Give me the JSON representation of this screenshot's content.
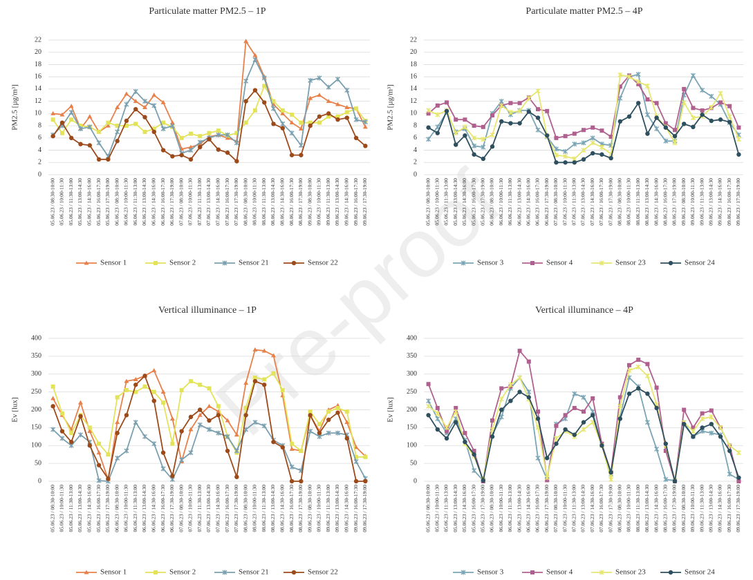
{
  "watermark": "Pre-proof",
  "chart_data": [
    {
      "type": "line",
      "title": "Particulate matter PM2.5 – 1P",
      "y_label": "PM2.5 [µg/m³]",
      "categories": [
        "05.06.23 / 08:30-10:00",
        "05.06.23 / 10:00-11:30",
        "05.06.23 / 11:30-13:00",
        "05.06.23 / 13:00-14:30",
        "05.06.23 / 14:30-16:00",
        "05.06.23 / 16:00-17:30",
        "05.06.23 / 17:30-19:00",
        "06.06.23 / 08:30-10:00",
        "06.06.23 / 10:00-11:30",
        "06.06.23 / 11:30-13:00",
        "06.06.23 / 13:00-14:30",
        "06.06.23 / 14:30-16:00",
        "06.06.23 / 16:00-17:30",
        "06.06.23 / 17:30-19:00",
        "07.06.23 / 08:30-10:00",
        "07.06.23 / 10:00-11:30",
        "07.06.23 / 11:30-13:00",
        "07.06.23 / 13:00-14:30",
        "07.06.23 / 14:30-16:00",
        "07.06.23 / 16:00-17:30",
        "07.06.23 / 17:30-19:00",
        "08.06.23 / 08:30-10:00",
        "08.06.23 / 10:00-11:30",
        "08.06.23 / 11:30-13:00",
        "08.06.23 / 13:00-14:30",
        "08.06.23 / 14:30-16:00",
        "08.06.23 / 16:00-17:30",
        "08.06.23 / 17:30-19:00",
        "09.06.23 / 08:30-10:00",
        "09.06.23 / 10:00-11:30",
        "09.06.23 / 11:30-13:00",
        "09.06.23 / 13:00-14:30",
        "09.06.23 / 14:30-16:00",
        "09.06.23 / 16:00-17:30",
        "09.06.23 / 17:30-19:00"
      ],
      "ylim": [
        0,
        22
      ],
      "yticks": [
        0,
        2,
        4,
        6,
        8,
        10,
        12,
        14,
        16,
        18,
        20,
        22
      ],
      "grid": true,
      "series": [
        {
          "name": "Sensor 1",
          "color": "#e8804a",
          "marker": "triangle",
          "values": [
            10,
            9.8,
            11.2,
            7.5,
            9.5,
            7,
            8,
            11,
            13.2,
            12,
            11,
            13,
            11.8,
            8.5,
            4.2,
            4.5,
            5,
            6.2,
            6.5,
            6,
            5.5,
            21.8,
            19.5,
            16,
            11.5,
            10,
            8.5,
            7.5,
            12.5,
            13,
            12,
            11.5,
            11,
            10.8,
            7.8
          ]
        },
        {
          "name": "Sensor 2",
          "color": "#e3e35a",
          "marker": "square",
          "values": [
            9,
            6.8,
            9,
            8,
            7.8,
            7,
            8.5,
            8,
            8,
            8.3,
            7,
            7.5,
            8.5,
            7.8,
            6,
            6.7,
            6.3,
            6.8,
            7.2,
            6.4,
            6.8,
            8.5,
            10.5,
            14.5,
            12,
            10.5,
            9.8,
            8.5,
            8.5,
            8.5,
            9.5,
            9.5,
            10.2,
            10.8,
            8.8
          ]
        },
        {
          "name": "Sensor 21",
          "color": "#7a9fae",
          "marker": "cross",
          "values": [
            6.5,
            8,
            10.2,
            7.5,
            7.8,
            5.2,
            3,
            7,
            11.5,
            13.6,
            12,
            11.3,
            7.5,
            8,
            3.5,
            4,
            5.3,
            6,
            6.5,
            6.5,
            5.2,
            15.3,
            18.8,
            15.8,
            10.8,
            8.3,
            6.8,
            4.8,
            15.4,
            15.8,
            14.3,
            15.6,
            13.8,
            9,
            8.6
          ]
        },
        {
          "name": "Sensor 22",
          "color": "#9c4a1a",
          "marker": "circle",
          "values": [
            6.3,
            8.5,
            6,
            5,
            4.8,
            2.5,
            2.5,
            5.5,
            8.8,
            10.7,
            9.4,
            7,
            4,
            3,
            3.2,
            2.5,
            4.5,
            5.8,
            4.1,
            3.6,
            2.2,
            12,
            13.8,
            11.8,
            8.3,
            7.6,
            3.2,
            3.2,
            8,
            9.5,
            10,
            9,
            9.3,
            6,
            4.7
          ]
        }
      ]
    },
    {
      "type": "line",
      "title": "Particulate matter PM2.5 – 4P",
      "y_label": "PM2.5 [µg/m³]",
      "categories": [
        "05.06.23 / 08:30-10:00",
        "05.06.23 / 10:00-11:30",
        "05.06.23 / 11:30-13:00",
        "05.06.23 / 13:00-14:30",
        "05.06.23 / 14:30-16:00",
        "05.06.23 / 16:00-17:30",
        "05.06.23 / 17:30-19:00",
        "06.06.23 / 08:30-10:00",
        "06.06.23 / 10:00-11:30",
        "06.06.23 / 11:30-13:00",
        "06.06.23 / 13:00-14:30",
        "06.06.23 / 14:30-16:00",
        "06.06.23 / 16:00-17:30",
        "06.06.23 / 17:30-19:00",
        "07.06.23 / 08:30-10:00",
        "07.06.23 / 10:00-11:30",
        "07.06.23 / 11:30-13:00",
        "07.06.23 / 13:00-14:30",
        "07.06.23 / 14:30-16:00",
        "07.06.23 / 16:00-17:30",
        "07.06.23 / 17:30-19:00",
        "08.06.23 / 08:30-10:00",
        "08.06.23 / 10:00-11:30",
        "08.06.23 / 11:30-13:00",
        "08.06.23 / 13:00-14:30",
        "08.06.23 / 14:30-16:00",
        "08.06.23 / 16:00-17:30",
        "08.06.23 / 17:30-19:00",
        "09.06.23 / 08:30-10:00",
        "09.06.23 / 10:00-11:30",
        "09.06.23 / 11:30-13:00",
        "09.06.23 / 13:00-14:30",
        "09.06.23 / 14:30-16:00",
        "09.06.23 / 16:00-17:30",
        "09.06.23 / 17:30-19:00"
      ],
      "ylim": [
        0,
        22
      ],
      "yticks": [
        0,
        2,
        4,
        6,
        8,
        10,
        12,
        14,
        16,
        18,
        20,
        22
      ],
      "grid": true,
      "series": [
        {
          "name": "Sensor 3",
          "color": "#7aa5b5",
          "marker": "cross",
          "values": [
            5.8,
            7.8,
            10.2,
            7,
            7.5,
            4.7,
            4.5,
            10,
            12,
            9.8,
            10.5,
            10.5,
            7.3,
            6.2,
            4.2,
            3.8,
            5,
            5.2,
            6,
            5,
            4.8,
            12.5,
            16,
            16.4,
            9.8,
            7.5,
            5.5,
            5.5,
            13,
            16.2,
            13.8,
            12.8,
            11.5,
            8.5,
            6.5
          ]
        },
        {
          "name": "Sensor 4",
          "color": "#b0608f",
          "marker": "square",
          "values": [
            10,
            11.3,
            11.8,
            9,
            9,
            8,
            7.8,
            9.7,
            11.3,
            11.7,
            11.7,
            12.6,
            10.7,
            10.4,
            6,
            6.3,
            6.7,
            7.3,
            7.7,
            7.2,
            6.2,
            14.4,
            16.2,
            14.8,
            12.3,
            11.7,
            8.4,
            7.3,
            14,
            10.9,
            10.5,
            10.9,
            11.8,
            11.2,
            7.7
          ]
        },
        {
          "name": "Sensor 23",
          "color": "#e6e670",
          "marker": "cross",
          "values": [
            10.5,
            9.8,
            10.5,
            6.8,
            7.8,
            6,
            5.8,
            6.5,
            11.3,
            10.2,
            10.4,
            12.5,
            13.7,
            6.3,
            3.2,
            3,
            2.6,
            4,
            5.2,
            4.5,
            3.4,
            16.3,
            16,
            15.2,
            14.5,
            9.5,
            7.8,
            5.2,
            11.8,
            9.3,
            9.5,
            11,
            13.3,
            9.5,
            5.8
          ]
        },
        {
          "name": "Sensor 24",
          "color": "#2e4f5e",
          "marker": "circle",
          "values": [
            7.7,
            6.8,
            10.4,
            4.9,
            6.4,
            3.3,
            2.6,
            4.6,
            8.7,
            8.4,
            8.4,
            10.3,
            9.3,
            6.4,
            2,
            2,
            2,
            2.5,
            3.5,
            3.3,
            2.7,
            8.7,
            9.5,
            11.7,
            6.7,
            9.3,
            7.7,
            6.3,
            8.3,
            7.8,
            9.8,
            8.8,
            9,
            8.6,
            3.3
          ]
        }
      ]
    },
    {
      "type": "line",
      "title": "Vertical illuminance – 1P",
      "y_label": "Ev [lux]",
      "categories": [
        "05.06.23 / 08:30-10:00",
        "05.06.23 / 10:00-11:30",
        "05.06.23 / 11:30-13:00",
        "05.06.23 / 13:00-14:30",
        "05.06.23 / 14:30-16:00",
        "05.06.23 / 16:00-17:30",
        "05.06.23 / 17:30-19:00",
        "06.06.23 / 08:30-10:00",
        "06.06.23 / 10:00-11:30",
        "06.06.23 / 11:30-13:00",
        "06.06.23 / 13:00-14:30",
        "06.06.23 / 14:30-16:00",
        "06.06.23 / 16:00-17:30",
        "06.06.23 / 17:30-19:00",
        "07.06.23 / 08:30-10:00",
        "07.06.23 / 10:00-11:30",
        "07.06.23 / 11:30-13:00",
        "07.06.23 / 13:00-14:30",
        "07.06.23 / 14:30-16:00",
        "07.06.23 / 16:00-17:30",
        "07.06.23 / 17:30-19:00",
        "08.06.23 / 08:30-10:00",
        "08.06.23 / 10:00-11:30",
        "08.06.23 / 11:30-13:00",
        "08.06.23 / 13:00-14:30",
        "08.06.23 / 14:30-16:00",
        "08.06.23 / 16:00-17:30",
        "08.06.23 / 17:30-19:00",
        "09.06.23 / 08:30-10:00",
        "09.06.23 / 10:00-11:30",
        "09.06.23 / 11:30-13:00",
        "09.06.23 / 13:00-14:30",
        "09.06.23 / 14:30-16:00",
        "09.06.23 / 16:00-17:30",
        "09.06.23 / 17:30-19:00"
      ],
      "ylim": [
        0,
        400
      ],
      "yticks": [
        0,
        50,
        100,
        150,
        200,
        250,
        300,
        350,
        400
      ],
      "grid": true,
      "series": [
        {
          "name": "Sensor 1",
          "color": "#e8804a",
          "marker": "triangle",
          "values": [
            232,
            185,
            145,
            220,
            140,
            80,
            5,
            165,
            280,
            285,
            295,
            310,
            250,
            175,
            55,
            145,
            185,
            210,
            195,
            170,
            130,
            275,
            368,
            365,
            352,
            240,
            90,
            85,
            185,
            140,
            200,
            212,
            165,
            95,
            70
          ]
        },
        {
          "name": "Sensor 2",
          "color": "#e3e35a",
          "marker": "square",
          "values": [
            265,
            190,
            135,
            185,
            150,
            105,
            75,
            235,
            255,
            250,
            265,
            250,
            220,
            105,
            255,
            280,
            270,
            260,
            210,
            125,
            80,
            205,
            290,
            285,
            302,
            255,
            105,
            85,
            195,
            160,
            195,
            205,
            195,
            68,
            68
          ]
        },
        {
          "name": "Sensor 21",
          "color": "#7a9fae",
          "marker": "cross",
          "values": [
            145,
            120,
            100,
            130,
            110,
            2,
            0,
            65,
            85,
            165,
            125,
            105,
            35,
            5,
            60,
            80,
            158,
            145,
            135,
            125,
            85,
            145,
            165,
            155,
            115,
            100,
            40,
            30,
            140,
            125,
            135,
            135,
            130,
            55,
            8
          ]
        },
        {
          "name": "Sensor 22",
          "color": "#9c4a1a",
          "marker": "circle",
          "values": [
            210,
            140,
            110,
            182,
            100,
            45,
            7,
            135,
            185,
            270,
            295,
            225,
            80,
            15,
            140,
            180,
            200,
            170,
            185,
            85,
            12,
            185,
            280,
            270,
            110,
            95,
            0,
            0,
            185,
            135,
            172,
            192,
            120,
            0,
            0
          ]
        }
      ]
    },
    {
      "type": "line",
      "title": "Vertical illuminance – 4P",
      "y_label": "Ev [lux]",
      "categories": [
        "05.06.23 / 08:30-10:00",
        "05.06.23 / 10:00-11:30",
        "05.06.23 / 11:30-13:00",
        "05.06.23 / 13:00-14:30",
        "05.06.23 / 14:30-16:00",
        "05.06.23 / 16:00-17:30",
        "05.06.23 / 17:30-19:00",
        "06.06.23 / 08:30-10:00",
        "06.06.23 / 10:00-11:30",
        "06.06.23 / 11:30-13:00",
        "06.06.23 / 13:00-14:30",
        "06.06.23 / 14:30-16:00",
        "06.06.23 / 16:00-17:30",
        "06.06.23 / 17:30-19:00",
        "07.06.23 / 08:30-10:00",
        "07.06.23 / 10:00-11:30",
        "07.06.23 / 11:30-13:00",
        "07.06.23 / 13:00-14:30",
        "07.06.23 / 14:30-16:00",
        "07.06.23 / 16:00-17:30",
        "07.06.23 / 17:30-19:00",
        "08.06.23 / 08:30-10:00",
        "08.06.23 / 10:00-11:30",
        "08.06.23 / 11:30-13:00",
        "08.06.23 / 13:00-14:30",
        "08.06.23 / 14:30-16:00",
        "08.06.23 / 16:00-17:30",
        "08.06.23 / 17:30-19:00",
        "09.06.23 / 08:30-10:00",
        "09.06.23 / 10:00-11:30",
        "09.06.23 / 11:30-13:00",
        "09.06.23 / 13:00-14:30",
        "09.06.23 / 14:30-16:00",
        "09.06.23 / 16:00-17:30",
        "09.06.23 / 17:30-19:00"
      ],
      "ylim": [
        0,
        400
      ],
      "yticks": [
        0,
        50,
        100,
        150,
        200,
        250,
        300,
        350,
        400
      ],
      "grid": true,
      "series": [
        {
          "name": "Sensor 3",
          "color": "#7aa5b5",
          "marker": "cross",
          "values": [
            225,
            175,
            135,
            175,
            115,
            30,
            2,
            130,
            180,
            260,
            290,
            250,
            65,
            5,
            160,
            175,
            245,
            235,
            195,
            100,
            20,
            180,
            290,
            265,
            165,
            90,
            5,
            2,
            165,
            125,
            140,
            135,
            130,
            20,
            5
          ]
        },
        {
          "name": "Sensor 4",
          "color": "#b0608f",
          "marker": "square",
          "values": [
            272,
            205,
            140,
            205,
            135,
            85,
            0,
            170,
            260,
            265,
            365,
            335,
            195,
            3,
            155,
            185,
            205,
            195,
            232,
            105,
            25,
            235,
            325,
            340,
            328,
            262,
            85,
            0,
            200,
            150,
            190,
            198,
            150,
            100,
            0
          ]
        },
        {
          "name": "Sensor 23",
          "color": "#e6e670",
          "marker": "cross",
          "values": [
            210,
            190,
            150,
            195,
            105,
            70,
            5,
            145,
            230,
            270,
            290,
            230,
            150,
            10,
            120,
            140,
            125,
            145,
            165,
            100,
            5,
            210,
            310,
            320,
            295,
            215,
            100,
            3,
            165,
            140,
            175,
            180,
            150,
            100,
            80
          ]
        },
        {
          "name": "Sensor 24",
          "color": "#2e4f5e",
          "marker": "circle",
          "values": [
            185,
            145,
            120,
            165,
            110,
            75,
            2,
            125,
            200,
            225,
            250,
            235,
            175,
            65,
            105,
            145,
            130,
            165,
            185,
            100,
            25,
            175,
            245,
            260,
            245,
            205,
            105,
            0,
            160,
            125,
            150,
            160,
            125,
            85,
            10
          ]
        }
      ]
    }
  ]
}
